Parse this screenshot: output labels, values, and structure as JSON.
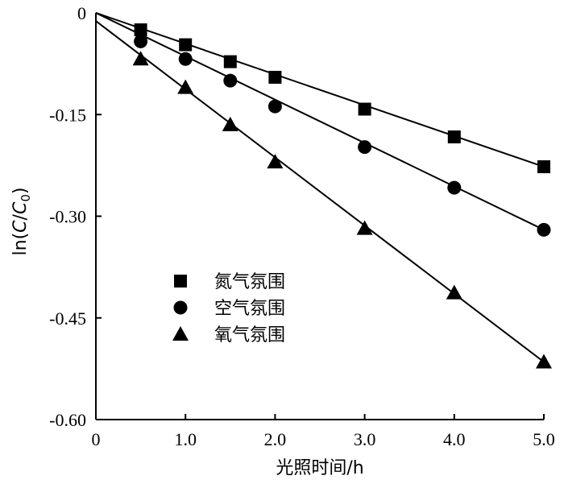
{
  "chart_data": {
    "type": "scatter",
    "title": "",
    "xlabel": "光照时间/h",
    "ylabel": "ln(C/C0)",
    "xlim": [
      0,
      5.0
    ],
    "ylim": [
      -0.6,
      0
    ],
    "x_ticks": [
      0,
      1.0,
      2.0,
      3.0,
      4.0,
      5.0
    ],
    "x_tick_labels": [
      "0",
      "1.0",
      "2.0",
      "3.0",
      "4.0",
      "5.0"
    ],
    "y_ticks": [
      0,
      -0.15,
      -0.3,
      -0.45,
      -0.6
    ],
    "y_tick_labels": [
      "0",
      "-0.15",
      "-0.30",
      "-0.45",
      "-0.60"
    ],
    "grid": false,
    "legend_position": "center-left",
    "series": [
      {
        "name": "氮气氛围",
        "marker": "square",
        "x": [
          0.5,
          1.0,
          1.5,
          2.0,
          3.0,
          4.0,
          5.0
        ],
        "y": [
          -0.025,
          -0.047,
          -0.072,
          -0.095,
          -0.142,
          -0.183,
          -0.227
        ],
        "fit": {
          "x0": 0,
          "y0": 0.0,
          "x1": 5.0,
          "y1": -0.227
        }
      },
      {
        "name": "空气氛围",
        "marker": "circle",
        "x": [
          0.5,
          1.0,
          1.5,
          2.0,
          3.0,
          4.0,
          5.0
        ],
        "y": [
          -0.042,
          -0.068,
          -0.1,
          -0.138,
          -0.198,
          -0.258,
          -0.32
        ],
        "fit": {
          "x0": 0,
          "y0": 0.0,
          "x1": 5.0,
          "y1": -0.32
        }
      },
      {
        "name": "氧气氛围",
        "marker": "triangle",
        "x": [
          0.5,
          1.0,
          1.5,
          2.0,
          3.0,
          4.0,
          5.0
        ],
        "y": [
          -0.068,
          -0.11,
          -0.165,
          -0.22,
          -0.318,
          -0.413,
          -0.515
        ],
        "fit": {
          "x0": 0,
          "y0": -0.012,
          "x1": 5.0,
          "y1": -0.515
        }
      }
    ]
  }
}
